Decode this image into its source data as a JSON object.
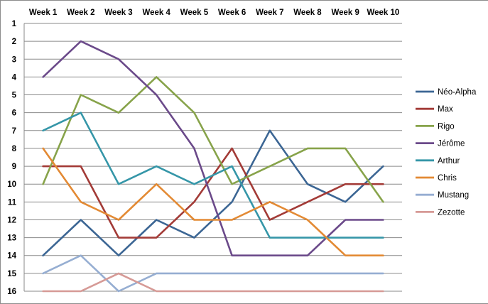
{
  "chart_data": {
    "type": "line",
    "title": "",
    "xlabel": "",
    "ylabel": "",
    "categories": [
      "Week 1",
      "Week 2",
      "Week 3",
      "Week 4",
      "Week 5",
      "Week 6",
      "Week 7",
      "Week 8",
      "Week 9",
      "Week 10"
    ],
    "ylim": [
      1,
      16
    ],
    "y_reversed": true,
    "y_ticks": [
      "1",
      "2",
      "3",
      "4",
      "5",
      "6",
      "7",
      "8",
      "9",
      "10",
      "11",
      "12",
      "13",
      "14",
      "15",
      "16"
    ],
    "grid": true,
    "x_axis_position": "top",
    "legend_position": "right",
    "series": [
      {
        "name": "Néo-Alpha",
        "color": "#3c6694",
        "values": [
          14,
          12,
          14,
          12,
          13,
          11,
          7,
          10,
          11,
          9
        ]
      },
      {
        "name": "Max",
        "color": "#a33b37",
        "values": [
          9,
          9,
          13,
          13,
          11,
          8,
          12,
          11,
          10,
          10
        ]
      },
      {
        "name": "Rigo",
        "color": "#87a34a",
        "values": [
          10,
          5,
          6,
          4,
          6,
          10,
          9,
          8,
          8,
          11
        ]
      },
      {
        "name": "Jérôme",
        "color": "#6b4a8a",
        "values": [
          4,
          2,
          3,
          5,
          8,
          14,
          14,
          14,
          12,
          12
        ]
      },
      {
        "name": "Arthur",
        "color": "#3596a8",
        "values": [
          7,
          6,
          10,
          9,
          10,
          9,
          13,
          13,
          13,
          13
        ]
      },
      {
        "name": "Chris",
        "color": "#e38a34",
        "values": [
          8,
          11,
          12,
          10,
          12,
          12,
          11,
          12,
          14,
          14
        ]
      },
      {
        "name": "Mustang",
        "color": "#96aed2",
        "values": [
          15,
          14,
          16,
          15,
          15,
          15,
          15,
          15,
          15,
          15
        ]
      },
      {
        "name": "Zezotte",
        "color": "#d69a96",
        "values": [
          16,
          16,
          15,
          16,
          16,
          16,
          16,
          16,
          16,
          16
        ]
      }
    ]
  }
}
